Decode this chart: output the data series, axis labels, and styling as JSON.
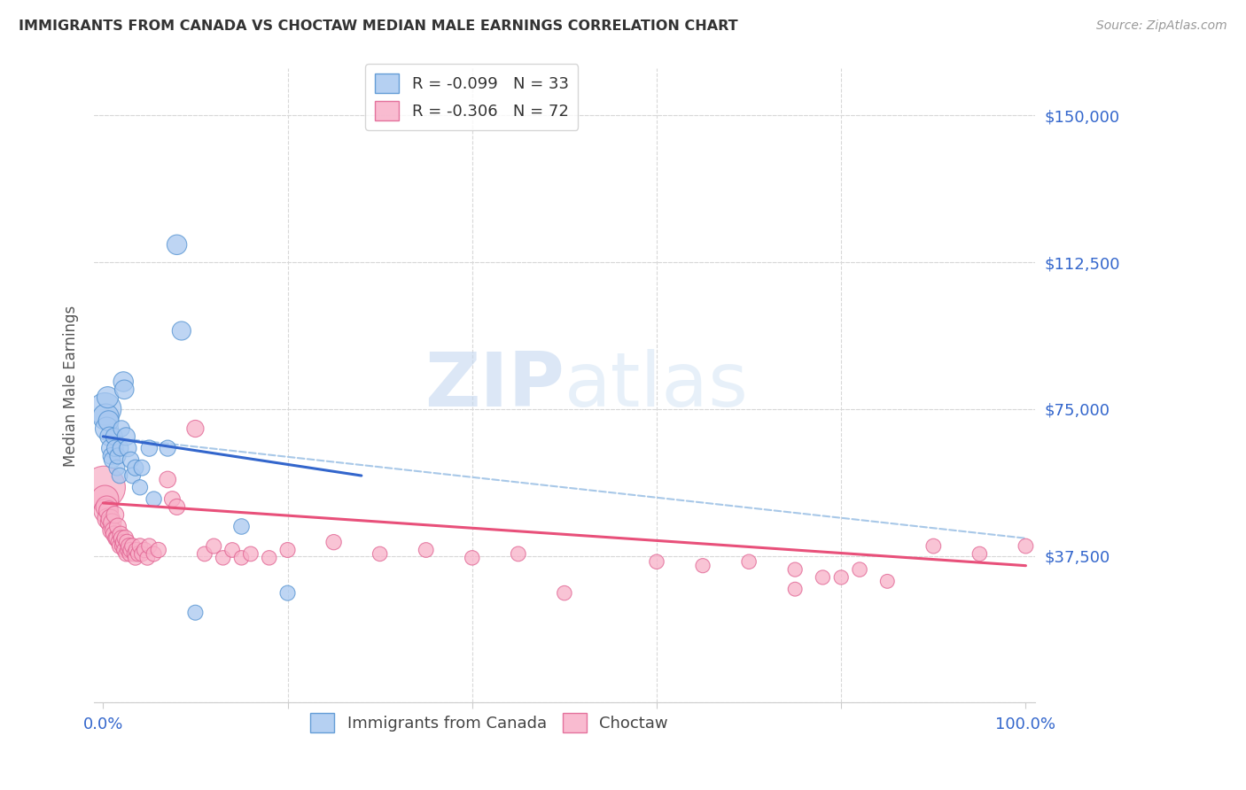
{
  "title": "IMMIGRANTS FROM CANADA VS CHOCTAW MEDIAN MALE EARNINGS CORRELATION CHART",
  "source": "Source: ZipAtlas.com",
  "ylabel": "Median Male Earnings",
  "watermark_zip": "ZIP",
  "watermark_atlas": "atlas",
  "legend_blue_r": "R = -0.099",
  "legend_blue_n": "N = 33",
  "legend_pink_r": "R = -0.306",
  "legend_pink_n": "N = 72",
  "yticks": [
    0,
    37500,
    75000,
    112500,
    150000
  ],
  "ytick_labels": [
    "",
    "$37,500",
    "$75,000",
    "$112,500",
    "$150,000"
  ],
  "ylim": [
    0,
    162000
  ],
  "xlim": [
    -0.01,
    1.01
  ],
  "blue_color": "#a8c8f0",
  "blue_edge_color": "#5090d0",
  "blue_line_color": "#3366cc",
  "pink_color": "#f8b0c8",
  "pink_edge_color": "#e06090",
  "pink_line_color": "#e8507a",
  "dashed_line_color": "#a8c8e8",
  "grid_color": "#d8d8d8",
  "title_color": "#333333",
  "axis_label_color": "#555555",
  "ytick_color": "#3366cc",
  "xtick_color": "#3366cc",
  "blue_line_x": [
    0.0,
    0.28
  ],
  "blue_line_y": [
    68000,
    58000
  ],
  "pink_line_x": [
    0.0,
    1.0
  ],
  "pink_line_y": [
    51000,
    35000
  ],
  "dashed_line_x": [
    0.0,
    1.0
  ],
  "dashed_line_y": [
    68000,
    42000
  ],
  "blue_scatter": [
    [
      0.002,
      75000
    ],
    [
      0.003,
      73000
    ],
    [
      0.004,
      70000
    ],
    [
      0.005,
      78000
    ],
    [
      0.006,
      72000
    ],
    [
      0.007,
      68000
    ],
    [
      0.008,
      65000
    ],
    [
      0.009,
      63000
    ],
    [
      0.01,
      62000
    ],
    [
      0.012,
      68000
    ],
    [
      0.013,
      65000
    ],
    [
      0.015,
      60000
    ],
    [
      0.016,
      63000
    ],
    [
      0.018,
      58000
    ],
    [
      0.019,
      65000
    ],
    [
      0.02,
      70000
    ],
    [
      0.022,
      82000
    ],
    [
      0.023,
      80000
    ],
    [
      0.025,
      68000
    ],
    [
      0.027,
      65000
    ],
    [
      0.03,
      62000
    ],
    [
      0.032,
      58000
    ],
    [
      0.035,
      60000
    ],
    [
      0.04,
      55000
    ],
    [
      0.042,
      60000
    ],
    [
      0.05,
      65000
    ],
    [
      0.055,
      52000
    ],
    [
      0.07,
      65000
    ],
    [
      0.08,
      117000
    ],
    [
      0.085,
      95000
    ],
    [
      0.1,
      23000
    ],
    [
      0.15,
      45000
    ],
    [
      0.2,
      28000
    ]
  ],
  "blue_sizes": [
    700,
    450,
    350,
    300,
    270,
    240,
    210,
    190,
    180,
    190,
    180,
    165,
    170,
    160,
    165,
    175,
    260,
    240,
    210,
    190,
    175,
    165,
    170,
    155,
    165,
    175,
    155,
    170,
    260,
    230,
    150,
    160,
    150
  ],
  "pink_scatter": [
    [
      0.001,
      55000
    ],
    [
      0.002,
      52000
    ],
    [
      0.003,
      49000
    ],
    [
      0.004,
      50000
    ],
    [
      0.005,
      47000
    ],
    [
      0.006,
      49000
    ],
    [
      0.007,
      46000
    ],
    [
      0.008,
      47000
    ],
    [
      0.009,
      44000
    ],
    [
      0.01,
      46000
    ],
    [
      0.011,
      44000
    ],
    [
      0.012,
      43000
    ],
    [
      0.013,
      48000
    ],
    [
      0.014,
      42000
    ],
    [
      0.015,
      42000
    ],
    [
      0.016,
      45000
    ],
    [
      0.017,
      41000
    ],
    [
      0.018,
      40000
    ],
    [
      0.019,
      43000
    ],
    [
      0.02,
      42000
    ],
    [
      0.021,
      40000
    ],
    [
      0.022,
      41000
    ],
    [
      0.023,
      39000
    ],
    [
      0.024,
      42000
    ],
    [
      0.025,
      38000
    ],
    [
      0.026,
      41000
    ],
    [
      0.027,
      39000
    ],
    [
      0.028,
      40000
    ],
    [
      0.029,
      38000
    ],
    [
      0.03,
      39000
    ],
    [
      0.032,
      40000
    ],
    [
      0.034,
      38000
    ],
    [
      0.035,
      37000
    ],
    [
      0.036,
      39000
    ],
    [
      0.038,
      38000
    ],
    [
      0.04,
      40000
    ],
    [
      0.042,
      38000
    ],
    [
      0.045,
      39000
    ],
    [
      0.048,
      37000
    ],
    [
      0.05,
      40000
    ],
    [
      0.055,
      38000
    ],
    [
      0.06,
      39000
    ],
    [
      0.07,
      57000
    ],
    [
      0.075,
      52000
    ],
    [
      0.08,
      50000
    ],
    [
      0.1,
      70000
    ],
    [
      0.11,
      38000
    ],
    [
      0.12,
      40000
    ],
    [
      0.13,
      37000
    ],
    [
      0.14,
      39000
    ],
    [
      0.15,
      37000
    ],
    [
      0.16,
      38000
    ],
    [
      0.18,
      37000
    ],
    [
      0.2,
      39000
    ],
    [
      0.25,
      41000
    ],
    [
      0.3,
      38000
    ],
    [
      0.35,
      39000
    ],
    [
      0.4,
      37000
    ],
    [
      0.45,
      38000
    ],
    [
      0.5,
      28000
    ],
    [
      0.6,
      36000
    ],
    [
      0.65,
      35000
    ],
    [
      0.7,
      36000
    ],
    [
      0.75,
      34000
    ],
    [
      0.8,
      32000
    ],
    [
      0.85,
      31000
    ],
    [
      0.9,
      40000
    ],
    [
      0.95,
      38000
    ],
    [
      1.0,
      40000
    ],
    [
      0.75,
      29000
    ],
    [
      0.78,
      32000
    ],
    [
      0.82,
      34000
    ]
  ],
  "pink_sizes": [
    1200,
    500,
    380,
    320,
    280,
    250,
    220,
    230,
    200,
    210,
    190,
    185,
    200,
    175,
    170,
    185,
    165,
    155,
    175,
    165,
    155,
    165,
    155,
    175,
    150,
    165,
    155,
    165,
    150,
    155,
    165,
    150,
    145,
    155,
    150,
    160,
    150,
    155,
    145,
    155,
    150,
    155,
    180,
    165,
    170,
    190,
    145,
    150,
    140,
    145,
    140,
    145,
    140,
    150,
    155,
    140,
    145,
    140,
    145,
    140,
    140,
    135,
    140,
    135,
    135,
    130,
    145,
    140,
    145,
    130,
    135,
    140
  ]
}
